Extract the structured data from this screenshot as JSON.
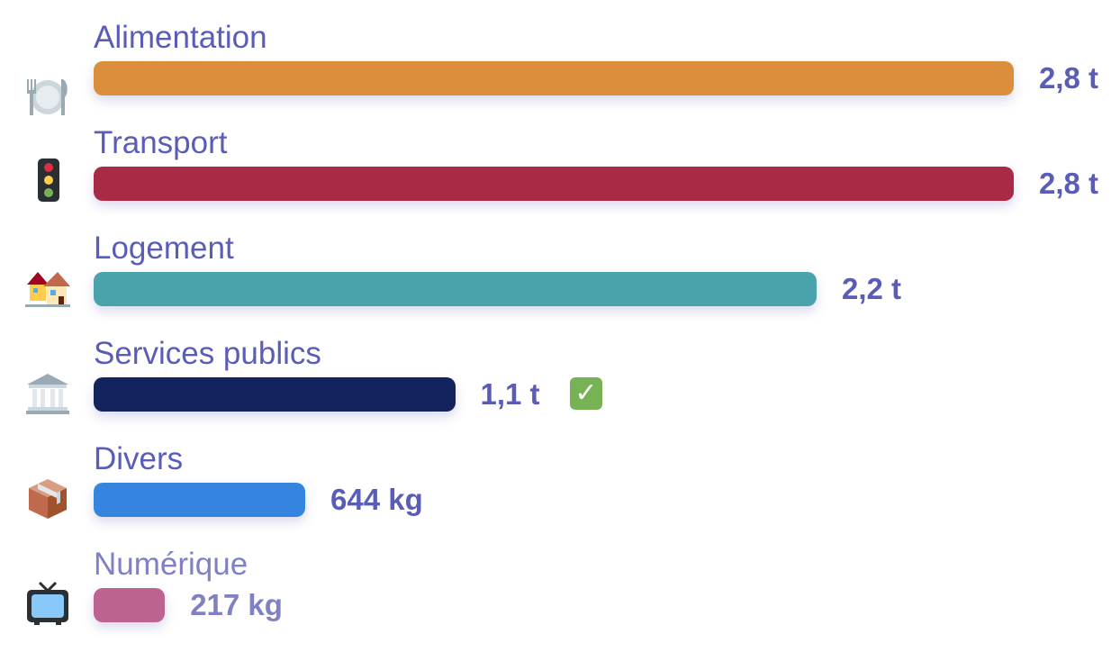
{
  "chart_data": {
    "type": "bar",
    "orientation": "horizontal",
    "categories": [
      "Alimentation",
      "Transport",
      "Logement",
      "Services publics",
      "Divers",
      "Numérique"
    ],
    "values_kg": [
      2800,
      2800,
      2200,
      1100,
      644,
      217
    ],
    "value_labels": [
      "2,8 t",
      "2,8 t",
      "2,2 t",
      "1,1 t",
      "644 kg",
      "217 kg"
    ],
    "colors": [
      "#db8f3d",
      "#a82a44",
      "#4aa3ab",
      "#12235e",
      "#3584e0",
      "#bd638f"
    ],
    "icons": [
      "fork-knife-plate-icon",
      "traffic-light-icon",
      "houses-icon",
      "classical-building-icon",
      "package-icon",
      "television-icon"
    ],
    "marked": [
      false,
      false,
      false,
      true,
      false,
      false
    ],
    "marker_icon": "check-mark-icon",
    "marker_symbol": "✓",
    "title": "",
    "xlabel": "",
    "ylabel": ""
  }
}
